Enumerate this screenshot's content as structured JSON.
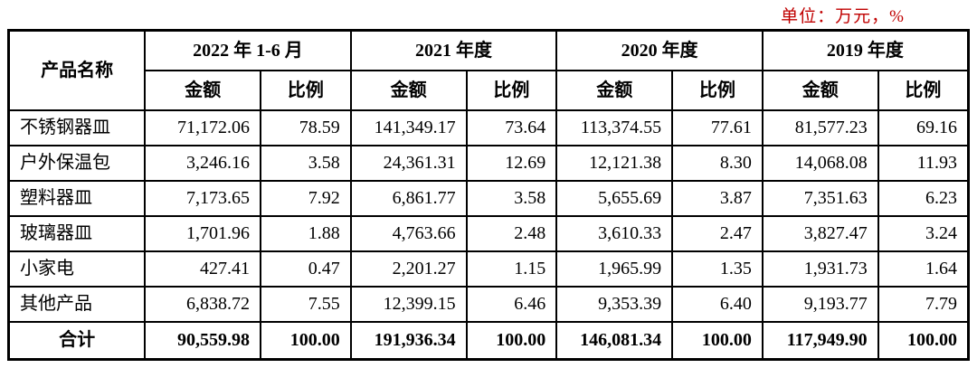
{
  "meta": {
    "unit_note": "单位：万元，%",
    "unit_note_color": "#c00000"
  },
  "table": {
    "corner_header": "产品名称",
    "period_groups": [
      {
        "label": "2022 年 1-6 月"
      },
      {
        "label": "2021 年度"
      },
      {
        "label": "2020 年度"
      },
      {
        "label": "2019 年度"
      }
    ],
    "sub_headers": {
      "amount": "金额",
      "ratio": "比例"
    },
    "rows": [
      {
        "name": "不锈钢器皿",
        "values": [
          "71,172.06",
          "78.59",
          "141,349.17",
          "73.64",
          "113,374.55",
          "77.61",
          "81,577.23",
          "69.16"
        ]
      },
      {
        "name": "户外保温包",
        "values": [
          "3,246.16",
          "3.58",
          "24,361.31",
          "12.69",
          "12,121.38",
          "8.30",
          "14,068.08",
          "11.93"
        ]
      },
      {
        "name": "塑料器皿",
        "values": [
          "7,173.65",
          "7.92",
          "6,861.77",
          "3.58",
          "5,655.69",
          "3.87",
          "7,351.63",
          "6.23"
        ]
      },
      {
        "name": "玻璃器皿",
        "values": [
          "1,701.96",
          "1.88",
          "4,763.66",
          "2.48",
          "3,610.33",
          "2.47",
          "3,827.47",
          "3.24"
        ]
      },
      {
        "name": "小家电",
        "values": [
          "427.41",
          "0.47",
          "2,201.27",
          "1.15",
          "1,965.99",
          "1.35",
          "1,931.73",
          "1.64"
        ]
      },
      {
        "name": "其他产品",
        "values": [
          "6,838.72",
          "7.55",
          "12,399.15",
          "6.46",
          "9,353.39",
          "6.40",
          "9,193.77",
          "7.79"
        ]
      }
    ],
    "total_row": {
      "name": "合计",
      "values": [
        "90,559.98",
        "100.00",
        "191,936.34",
        "100.00",
        "146,081.34",
        "100.00",
        "117,949.90",
        "100.00"
      ]
    }
  }
}
